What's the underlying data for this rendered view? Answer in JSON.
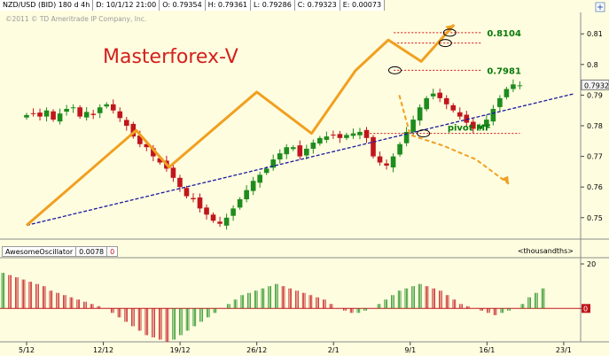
{
  "header": {
    "symbol": "NZD/USD (BID) 180 d 4h",
    "date": "D: 10/1/12 21:00",
    "open": "O: 0.79354",
    "high": "H: 0.79361",
    "low": "L: 0.79286",
    "close": "C: 0.79323",
    "change": "E: 0.00073"
  },
  "copyright": "©2011 © TD Ameritrade IP Company, Inc.",
  "brand": "Masterforex-V",
  "chart_data": [
    {
      "type": "line",
      "ylim": [
        0.743,
        0.817
      ],
      "y_ticks": [
        "0.75",
        "0.76",
        "0.77",
        "0.78",
        "0.79",
        "0.8",
        "0.81"
      ],
      "y_tick_values": [
        0.75,
        0.76,
        0.77,
        0.78,
        0.79,
        0.8,
        0.81
      ],
      "x_ticks": [
        "5/12",
        "12/12",
        "19/12",
        "26/12",
        "2/1",
        "9/1",
        "16/1",
        "23/1"
      ],
      "x_tick_index": [
        0,
        7,
        14,
        21,
        28,
        35,
        42,
        49
      ],
      "last_price_label": "0.7932",
      "last_price": 0.7932,
      "close_series": [
        0.7835,
        0.784,
        0.783,
        0.785,
        0.782,
        0.784,
        0.7855,
        0.786,
        0.783,
        0.7845,
        0.7835,
        0.786,
        0.787,
        0.785,
        0.7825,
        0.78,
        0.7765,
        0.774,
        0.773,
        0.77,
        0.768,
        0.766,
        0.763,
        0.76,
        0.757,
        0.756,
        0.753,
        0.751,
        0.749,
        0.748,
        0.75,
        0.753,
        0.756,
        0.759,
        0.762,
        0.764,
        0.766,
        0.769,
        0.771,
        0.773,
        0.773,
        0.77,
        0.7725,
        0.7745,
        0.776,
        0.7765,
        0.777,
        0.776,
        0.777,
        0.7775,
        0.778,
        0.776,
        0.77,
        0.768,
        0.767,
        0.77,
        0.774,
        0.778,
        0.782,
        0.786,
        0.789,
        0.7905,
        0.789,
        0.787,
        0.785,
        0.783,
        0.781,
        0.779,
        0.78,
        0.782,
        0.7855,
        0.789,
        0.792,
        0.7935,
        0.7932
      ],
      "labels": [
        "0.8104",
        "0.7981",
        "pivot MF"
      ],
      "label_values": [
        0.8104,
        0.7981,
        0.7775
      ],
      "resistance_levels": [
        0.8104,
        0.807,
        0.7981
      ],
      "pivot_level": 0.7775,
      "trend_line": {
        "from": [
          0,
          0.7475
        ],
        "to": [
          50,
          0.7905
        ]
      },
      "wave_path": [
        [
          0,
          0.7475
        ],
        [
          10,
          0.7785
        ],
        [
          13,
          0.7665
        ],
        [
          21,
          0.791
        ],
        [
          26,
          0.7775
        ],
        [
          30,
          0.798
        ],
        [
          33,
          0.808
        ],
        [
          36,
          0.801
        ],
        [
          39,
          0.813
        ]
      ],
      "projection_path": [
        [
          34,
          0.79
        ],
        [
          35,
          0.777
        ],
        [
          38,
          0.7735
        ],
        [
          41,
          0.769
        ],
        [
          44,
          0.761
        ]
      ]
    },
    {
      "type": "bar",
      "title": "AwesomeOscillator",
      "value_label": "0.0078",
      "value_label2": "0",
      "unit": "<thousandths>",
      "y_ticks": [
        "20",
        "0"
      ],
      "y_tick_values": [
        20,
        0
      ],
      "ylim": [
        -15,
        22
      ],
      "values": [
        16,
        15,
        14,
        13,
        12,
        11,
        10,
        8,
        7,
        6,
        5,
        4,
        3,
        2,
        1,
        0,
        -2,
        -4,
        -6,
        -8,
        -10,
        -12,
        -13,
        -14,
        -15,
        -14,
        -12,
        -10,
        -8,
        -6,
        -4,
        -2,
        0,
        2,
        4,
        6,
        7,
        8,
        9,
        10,
        11,
        10,
        9,
        8,
        7,
        6,
        5,
        4,
        2,
        0,
        -1,
        -2,
        -2,
        -1,
        0,
        2,
        4,
        6,
        8,
        9,
        10,
        11,
        10,
        9,
        8,
        6,
        4,
        2,
        1,
        0,
        -1,
        -2,
        -3,
        -2,
        -1,
        0,
        2,
        5,
        7,
        9
      ]
    }
  ],
  "colors": {
    "background": "#fffde0",
    "candle_up": "#1e8c1e",
    "candle_down": "#c0161c",
    "trend": "#1a1aa0",
    "wave": "#f0a020",
    "levels": "#d01010",
    "label_green": "#0a7a0a"
  }
}
